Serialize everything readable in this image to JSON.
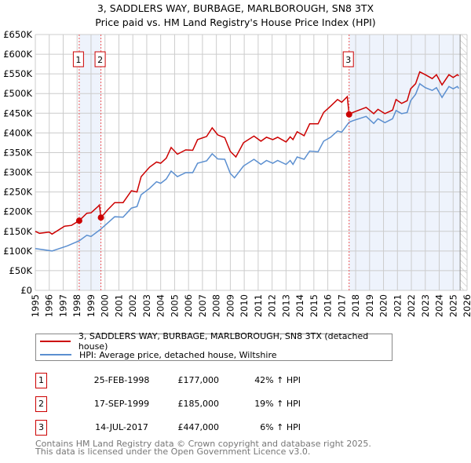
{
  "chart_data": {
    "type": "line",
    "title": "3, SADDLERS WAY, BURBAGE, MARLBOROUGH, SN8 3TX",
    "subtitle": "Price paid vs. HM Land Registry's House Price Index (HPI)",
    "xlim": [
      1995,
      2026
    ],
    "ylim": [
      0,
      650000
    ],
    "x_ticks": [
      "1995",
      "1996",
      "1997",
      "1998",
      "1999",
      "2000",
      "2001",
      "2002",
      "2003",
      "2004",
      "2005",
      "2006",
      "2007",
      "2008",
      "2009",
      "2010",
      "2011",
      "2012",
      "2013",
      "2014",
      "2015",
      "2016",
      "2017",
      "2018",
      "2019",
      "2020",
      "2021",
      "2022",
      "2023",
      "2024",
      "2025",
      "2026"
    ],
    "y_ticks": [
      {
        "v": 0,
        "label": "£0"
      },
      {
        "v": 50000,
        "label": "£50K"
      },
      {
        "v": 100000,
        "label": "£100K"
      },
      {
        "v": 150000,
        "label": "£150K"
      },
      {
        "v": 200000,
        "label": "£200K"
      },
      {
        "v": 250000,
        "label": "£250K"
      },
      {
        "v": 300000,
        "label": "£300K"
      },
      {
        "v": 350000,
        "label": "£350K"
      },
      {
        "v": 400000,
        "label": "£400K"
      },
      {
        "v": 450000,
        "label": "£450K"
      },
      {
        "v": 500000,
        "label": "£500K"
      },
      {
        "v": 550000,
        "label": "£550K"
      },
      {
        "v": 600000,
        "label": "£600K"
      },
      {
        "v": 650000,
        "label": "£650K"
      }
    ],
    "grid": true,
    "shaded_ranges": [
      [
        1998.15,
        1999.71
      ],
      [
        2017.53,
        2025.5
      ]
    ],
    "forecast_hatch_from": 2025.5,
    "series": [
      {
        "name": "3, SADDLERS WAY, BURBAGE, MARLBOROUGH, SN8 3TX (detached house)",
        "color": "#cc0000",
        "points": [
          [
            1995,
            150
          ],
          [
            1995.3,
            145
          ],
          [
            1996,
            148
          ],
          [
            1996.2,
            143
          ],
          [
            1997.1,
            163
          ],
          [
            1997.6,
            165
          ],
          [
            1998.15,
            177
          ],
          [
            1998.7,
            196
          ],
          [
            1999,
            197
          ],
          [
            1999.5,
            213
          ],
          [
            1999.6,
            217
          ],
          [
            1999.71,
            185
          ],
          [
            2000.2,
            205
          ],
          [
            2000.7,
            223
          ],
          [
            2001.3,
            223
          ],
          [
            2001.9,
            253
          ],
          [
            2002.3,
            250
          ],
          [
            2002.6,
            289
          ],
          [
            2003.2,
            313
          ],
          [
            2003.7,
            326
          ],
          [
            2004,
            323
          ],
          [
            2004.4,
            336
          ],
          [
            2004.75,
            363
          ],
          [
            2005.2,
            346
          ],
          [
            2005.8,
            357
          ],
          [
            2006.3,
            356
          ],
          [
            2006.65,
            383
          ],
          [
            2007.3,
            391
          ],
          [
            2007.7,
            413
          ],
          [
            2008.1,
            395
          ],
          [
            2008.6,
            388
          ],
          [
            2009,
            353
          ],
          [
            2009.4,
            339
          ],
          [
            2009.95,
            375
          ],
          [
            2010.7,
            392
          ],
          [
            2011.2,
            379
          ],
          [
            2011.6,
            389
          ],
          [
            2012.05,
            383
          ],
          [
            2012.4,
            389
          ],
          [
            2013,
            377
          ],
          [
            2013.3,
            390
          ],
          [
            2013.5,
            383
          ],
          [
            2013.8,
            403
          ],
          [
            2014.3,
            393
          ],
          [
            2014.7,
            423
          ],
          [
            2015.3,
            423
          ],
          [
            2015.7,
            452
          ],
          [
            2016.2,
            468
          ],
          [
            2016.7,
            485
          ],
          [
            2017,
            478
          ],
          [
            2017.4,
            492
          ],
          [
            2017.53,
            447
          ],
          [
            2017.8,
            452
          ],
          [
            2018.75,
            465
          ],
          [
            2019.3,
            449
          ],
          [
            2019.6,
            460
          ],
          [
            2020.1,
            449
          ],
          [
            2020.65,
            458
          ],
          [
            2020.9,
            485
          ],
          [
            2021.3,
            475
          ],
          [
            2021.7,
            482
          ],
          [
            2021.95,
            512
          ],
          [
            2022.3,
            525
          ],
          [
            2022.6,
            555
          ],
          [
            2023,
            548
          ],
          [
            2023.5,
            538
          ],
          [
            2023.8,
            548
          ],
          [
            2024.2,
            522
          ],
          [
            2024.7,
            548
          ],
          [
            2025,
            541
          ],
          [
            2025.3,
            548
          ],
          [
            2025.4,
            545
          ]
        ]
      },
      {
        "name": "HPI: Average price, detached house, Wiltshire",
        "color": "#5b8fd0",
        "points": [
          [
            1995,
            106
          ],
          [
            1996.2,
            100
          ],
          [
            1997.3,
            113
          ],
          [
            1998.15,
            126
          ],
          [
            1998.7,
            140
          ],
          [
            1999,
            137
          ],
          [
            1999.71,
            156
          ],
          [
            2000.7,
            187
          ],
          [
            2001.3,
            186
          ],
          [
            2001.9,
            209
          ],
          [
            2002.3,
            213
          ],
          [
            2002.6,
            243
          ],
          [
            2003.2,
            259
          ],
          [
            2003.7,
            276
          ],
          [
            2004,
            272
          ],
          [
            2004.4,
            283
          ],
          [
            2004.75,
            303
          ],
          [
            2005.2,
            289
          ],
          [
            2005.8,
            299
          ],
          [
            2006.3,
            299
          ],
          [
            2006.65,
            323
          ],
          [
            2007.3,
            329
          ],
          [
            2007.7,
            347
          ],
          [
            2008.1,
            334
          ],
          [
            2008.6,
            333
          ],
          [
            2009,
            297
          ],
          [
            2009.3,
            286
          ],
          [
            2009.95,
            316
          ],
          [
            2010.7,
            333
          ],
          [
            2011.2,
            320
          ],
          [
            2011.6,
            330
          ],
          [
            2012.05,
            323
          ],
          [
            2012.4,
            330
          ],
          [
            2013,
            320
          ],
          [
            2013.3,
            330
          ],
          [
            2013.5,
            320
          ],
          [
            2013.8,
            339
          ],
          [
            2014.3,
            333
          ],
          [
            2014.7,
            354
          ],
          [
            2015.3,
            352
          ],
          [
            2015.7,
            379
          ],
          [
            2016.2,
            389
          ],
          [
            2016.7,
            405
          ],
          [
            2017,
            402
          ],
          [
            2017.53,
            427
          ],
          [
            2017.8,
            431
          ],
          [
            2018.75,
            442
          ],
          [
            2019.3,
            424
          ],
          [
            2019.6,
            436
          ],
          [
            2020.1,
            426
          ],
          [
            2020.65,
            436
          ],
          [
            2020.9,
            457
          ],
          [
            2021.3,
            449
          ],
          [
            2021.7,
            452
          ],
          [
            2021.95,
            482
          ],
          [
            2022.3,
            498
          ],
          [
            2022.6,
            525
          ],
          [
            2023,
            515
          ],
          [
            2023.5,
            508
          ],
          [
            2023.8,
            515
          ],
          [
            2024.2,
            490
          ],
          [
            2024.7,
            518
          ],
          [
            2025,
            512
          ],
          [
            2025.3,
            518
          ],
          [
            2025.4,
            513
          ]
        ]
      }
    ],
    "y_points_unit": "thousands GBP",
    "sales": [
      {
        "id": "1",
        "x": 1998.15,
        "value": 177000
      },
      {
        "id": "2",
        "x": 1999.71,
        "value": 185000
      },
      {
        "id": "3",
        "x": 2017.53,
        "value": 447000
      }
    ]
  },
  "legend": {
    "property": "3, SADDLERS WAY, BURBAGE, MARLBOROUGH, SN8 3TX (detached house)",
    "hpi": "HPI: Average price, detached house, Wiltshire"
  },
  "transactions": [
    {
      "num": "1",
      "date": "25-FEB-1998",
      "price": "£177,000",
      "hpi": "42% ↑ HPI"
    },
    {
      "num": "2",
      "date": "17-SEP-1999",
      "price": "£185,000",
      "hpi": "19% ↑ HPI"
    },
    {
      "num": "3",
      "date": "14-JUL-2017",
      "price": "£447,000",
      "hpi": "6% ↑ HPI"
    }
  ],
  "footer": {
    "line1": "Contains HM Land Registry data © Crown copyright and database right 2025.",
    "line2": "This data is licensed under the Open Government Licence v3.0."
  },
  "colors": {
    "property": "#cc0000",
    "hpi": "#5b8fd0",
    "shade": "#eef3fc",
    "grid": "#cccccc"
  }
}
